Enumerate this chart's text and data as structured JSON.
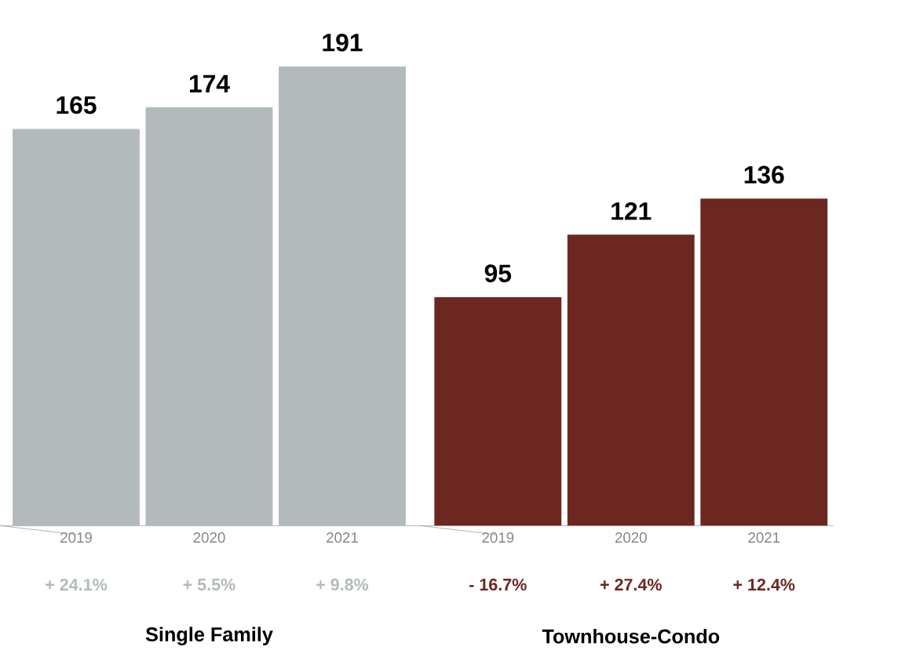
{
  "chart_data": {
    "type": "bar",
    "categories": [
      "2019",
      "2020",
      "2021",
      "2019",
      "2020",
      "2021"
    ],
    "values": [
      165,
      174,
      191,
      95,
      121,
      136
    ],
    "colors": [
      "#b3babb",
      "#b3babb",
      "#b3babb",
      "#6b2720",
      "#6b2720",
      "#6b2720"
    ],
    "data_labels": true,
    "annotations": [
      "+ 24.1%",
      "+ 5.5%",
      "+ 9.8%",
      "- 16.7%",
      "+ 27.4%",
      "+ 12.4%",
      "Single Family",
      "Townhouse-Condo"
    ]
  }
}
